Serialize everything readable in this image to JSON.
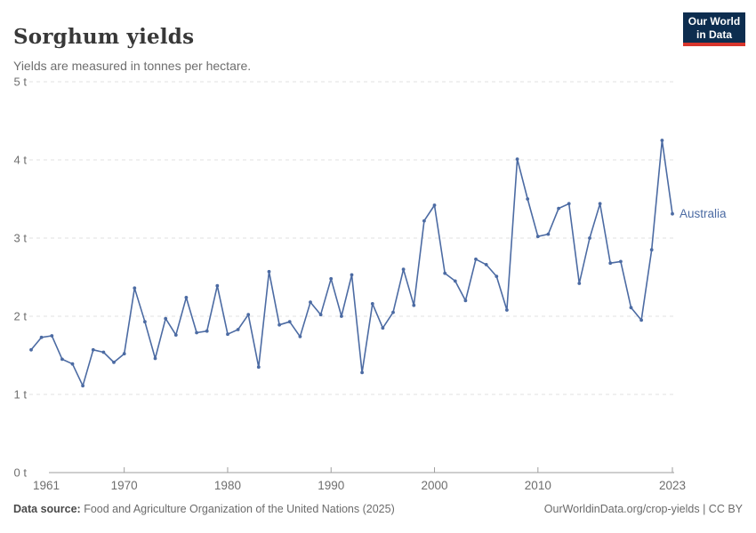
{
  "header": {
    "title": "Sorghum yields",
    "subtitle": "Yields are measured in tonnes per hectare."
  },
  "logo": {
    "line1": "Our World",
    "line2": "in Data",
    "bg_color": "#0d2d4f",
    "stripe_color": "#d8352c",
    "text_color": "#ffffff"
  },
  "chart_data": {
    "type": "line",
    "title": "Sorghum yields",
    "subtitle": "Yields are measured in tonnes per hectare.",
    "unit": "tonnes per hectare",
    "xlabel": "",
    "ylabel": "tonnes per hectare",
    "xlim": [
      1961,
      2023
    ],
    "ylim": [
      0,
      5
    ],
    "grid": "horizontal dashed",
    "legend_position": "end-of-line label",
    "x_ticks": [
      {
        "year": 1961,
        "label": "1961"
      },
      {
        "year": 1970,
        "label": "1970"
      },
      {
        "year": 1980,
        "label": "1980"
      },
      {
        "year": 1990,
        "label": "1990"
      },
      {
        "year": 2000,
        "label": "2000"
      },
      {
        "year": 2010,
        "label": "2010"
      },
      {
        "year": 2023,
        "label": "2023"
      }
    ],
    "y_ticks": [
      {
        "value": 0,
        "label": "0 t"
      },
      {
        "value": 1,
        "label": "1 t"
      },
      {
        "value": 2,
        "label": "2 t"
      },
      {
        "value": 3,
        "label": "3 t"
      },
      {
        "value": 4,
        "label": "4 t"
      },
      {
        "value": 5,
        "label": "5 t"
      }
    ],
    "series": [
      {
        "name": "Australia",
        "color": "#4c6ba3",
        "x": [
          1961,
          1962,
          1963,
          1964,
          1965,
          1966,
          1967,
          1968,
          1969,
          1970,
          1971,
          1972,
          1973,
          1974,
          1975,
          1976,
          1977,
          1978,
          1979,
          1980,
          1981,
          1982,
          1983,
          1984,
          1985,
          1986,
          1987,
          1988,
          1989,
          1990,
          1991,
          1992,
          1993,
          1994,
          1995,
          1996,
          1997,
          1998,
          1999,
          2000,
          2001,
          2002,
          2003,
          2004,
          2005,
          2006,
          2007,
          2008,
          2009,
          2010,
          2011,
          2012,
          2013,
          2014,
          2015,
          2016,
          2017,
          2018,
          2019,
          2020,
          2021,
          2022,
          2023
        ],
        "values": [
          1.57,
          1.73,
          1.75,
          1.45,
          1.39,
          1.11,
          1.57,
          1.54,
          1.41,
          1.52,
          2.36,
          1.93,
          1.46,
          1.97,
          1.76,
          2.24,
          1.79,
          1.81,
          2.39,
          1.77,
          1.83,
          2.02,
          1.35,
          2.57,
          1.89,
          1.93,
          1.74,
          2.18,
          2.02,
          2.48,
          2.0,
          2.53,
          1.28,
          2.16,
          1.85,
          2.05,
          2.6,
          2.14,
          3.22,
          3.42,
          2.55,
          2.45,
          2.2,
          2.73,
          2.66,
          2.51,
          2.08,
          4.01,
          3.5,
          3.02,
          3.05,
          3.38,
          3.44,
          2.42,
          3.0,
          3.44,
          2.68,
          2.7,
          2.11,
          1.95,
          2.85,
          4.25,
          3.31
        ]
      }
    ]
  },
  "footer": {
    "source_label": "Data source:",
    "source_text": "Food and Agriculture Organization of the United Nations (2025)",
    "right_text": "OurWorldinData.org/crop-yields | CC BY"
  },
  "colors": {
    "line": "#4c6ba3",
    "grid": "#e0e0e0",
    "axis": "#9e9e9e",
    "axis_label": "#6e6e6e"
  }
}
